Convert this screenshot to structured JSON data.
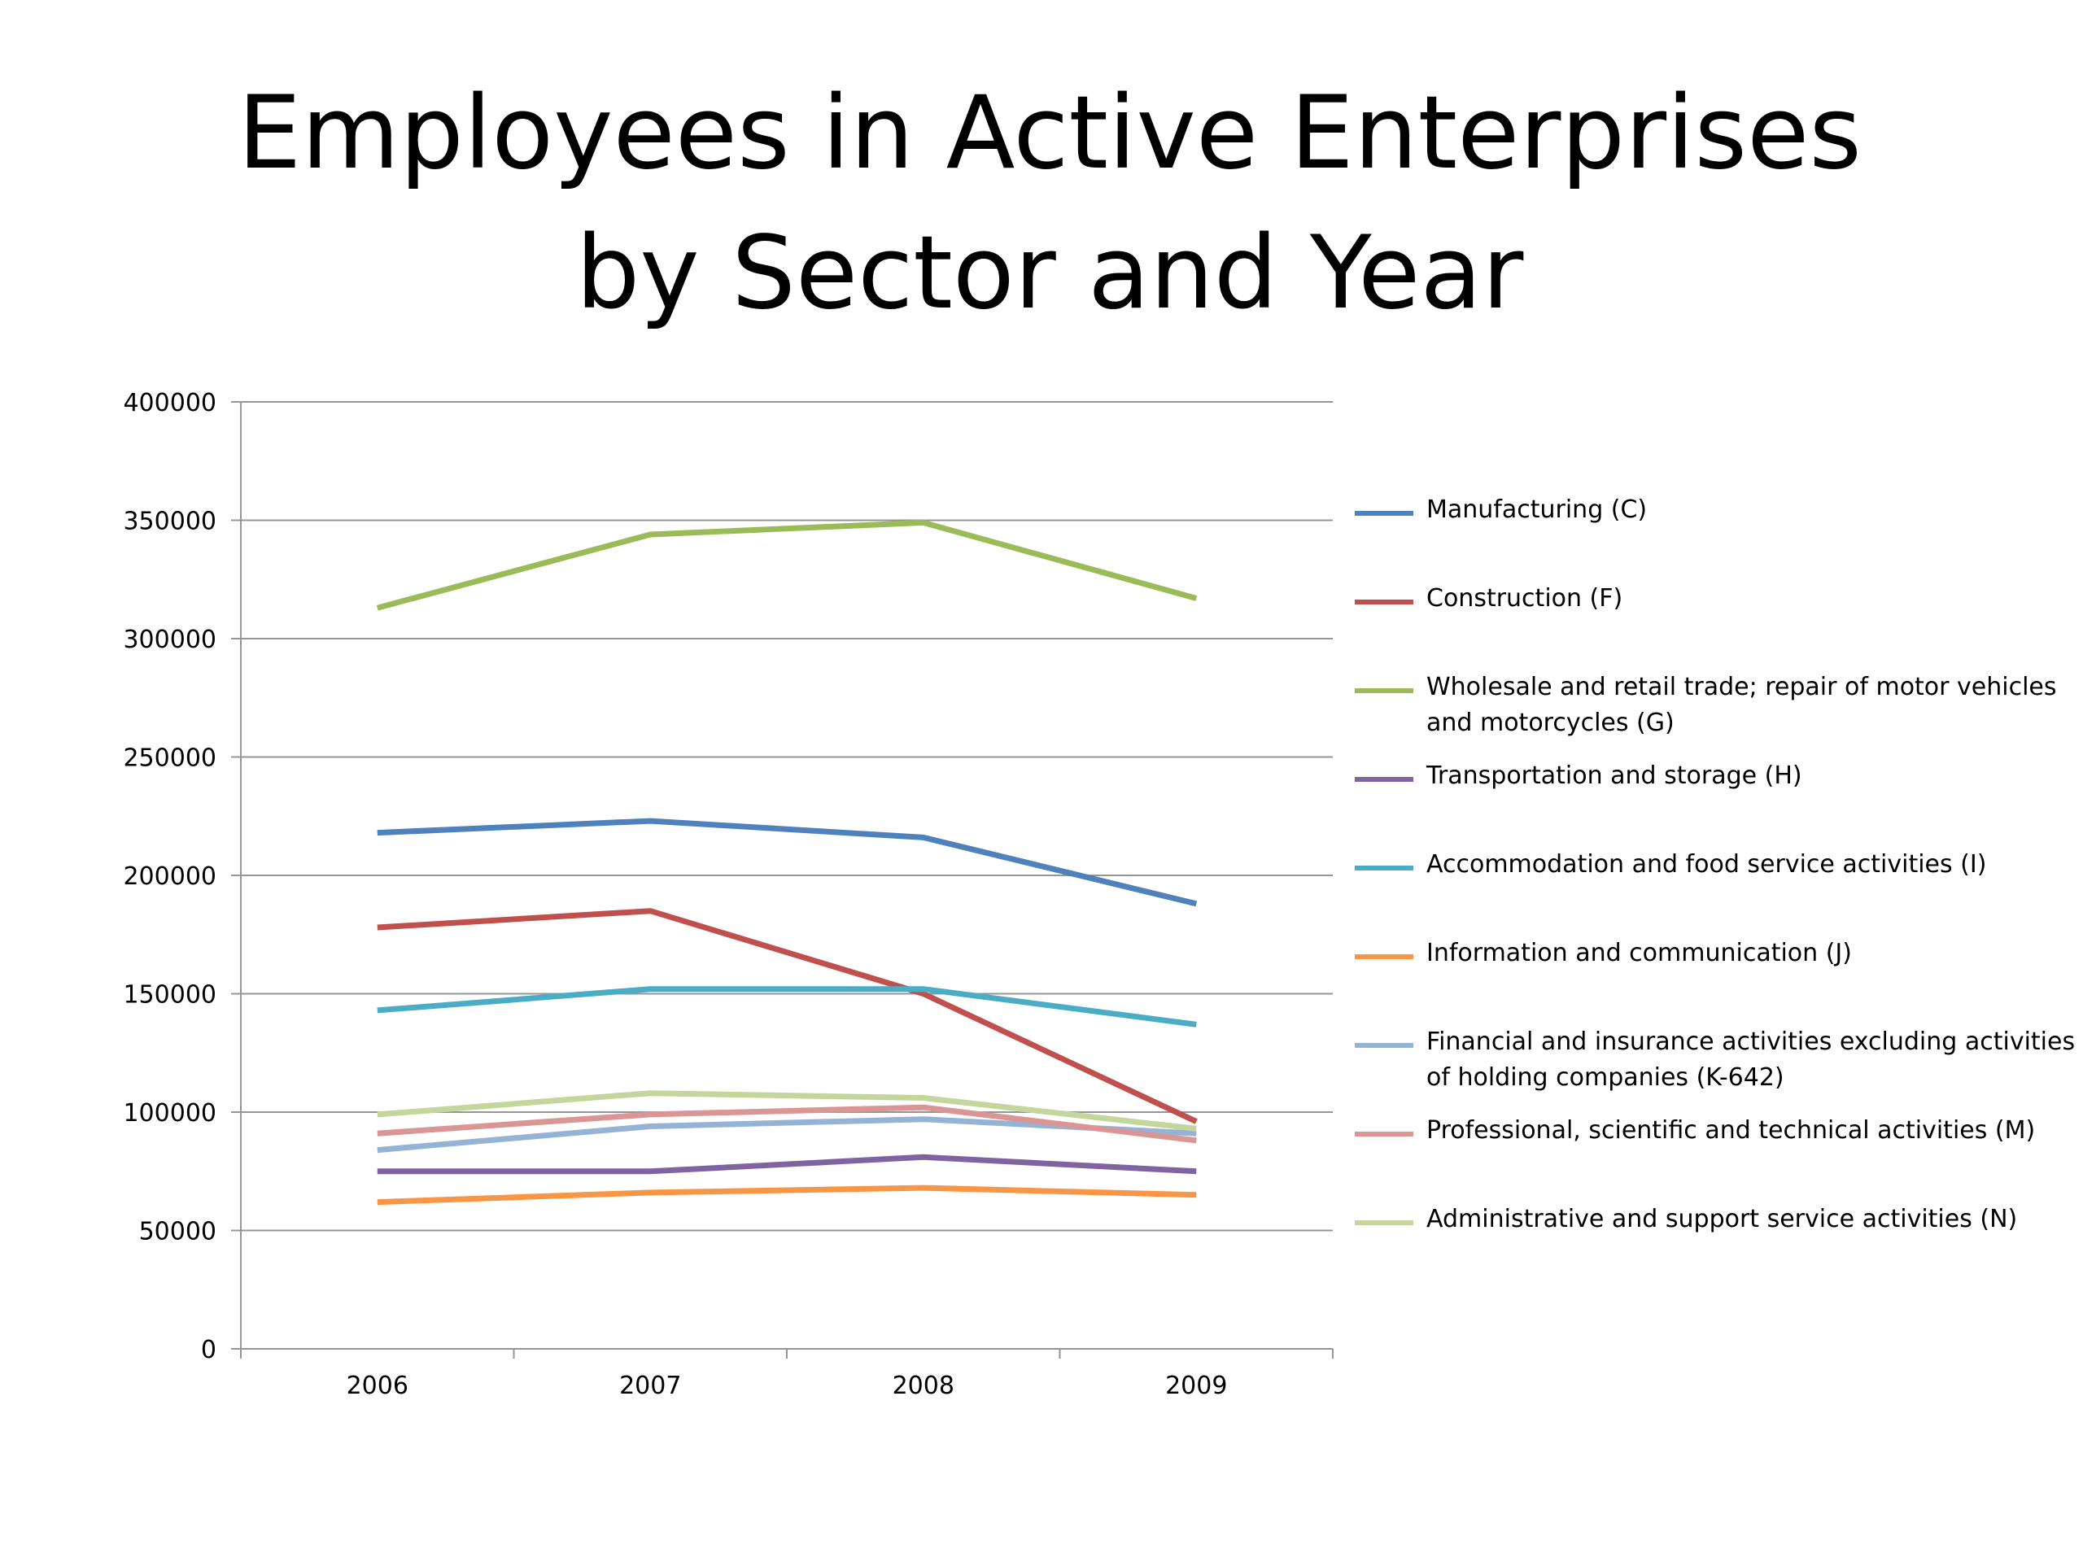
{
  "title_lines": [
    "Employees in Active Enterprises",
    "by Sector and Year"
  ],
  "chart_data": {
    "type": "line",
    "title": "Employees in Active Enterprises by Sector and Year",
    "categories": [
      "2006",
      "2007",
      "2008",
      "2009"
    ],
    "ylim": [
      0,
      400000
    ],
    "yticks": [
      "0",
      "50000",
      "100000",
      "150000",
      "200000",
      "250000",
      "300000",
      "350000",
      "400000"
    ],
    "grid": true,
    "legend_position": "right",
    "series": [
      {
        "name": "Manufacturing (C)",
        "color": "#4F81BD",
        "values": [
          218000,
          223000,
          216000,
          188000
        ]
      },
      {
        "name": "Construction (F)",
        "color": "#C0504D",
        "values": [
          178000,
          185000,
          150000,
          96000
        ]
      },
      {
        "name": "Wholesale and retail trade; repair of motor vehicles and motorcycles (G)",
        "color": "#9BBB59",
        "values": [
          313000,
          344000,
          349000,
          317000
        ]
      },
      {
        "name": "Transportation and storage (H)",
        "color": "#8064A2",
        "values": [
          75000,
          75000,
          81000,
          75000
        ]
      },
      {
        "name": "Accommodation and food service activities (I)",
        "color": "#4BACC6",
        "values": [
          143000,
          152000,
          152000,
          137000
        ]
      },
      {
        "name": "Information and communication (J)",
        "color": "#F79646",
        "values": [
          62000,
          66000,
          68000,
          65000
        ]
      },
      {
        "name": "Financial and insurance activities excluding activities of holding companies (K-642)",
        "color": "#95B3D7",
        "values": [
          84000,
          94000,
          97000,
          91000
        ]
      },
      {
        "name": "Professional, scientific and technical activities (M)",
        "color": "#D99694",
        "values": [
          91000,
          99000,
          102000,
          88000
        ]
      },
      {
        "name": "Administrative and support service activities (N)",
        "color": "#C3D69B",
        "values": [
          99000,
          108000,
          106000,
          93000
        ]
      }
    ]
  }
}
